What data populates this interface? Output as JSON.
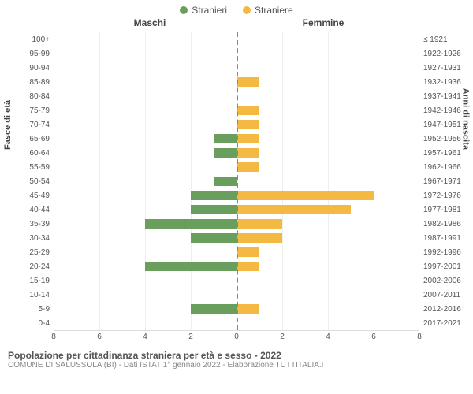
{
  "legend": {
    "male": {
      "label": "Stranieri",
      "color": "#6a9e5c"
    },
    "female": {
      "label": "Straniere",
      "color": "#f4b942"
    }
  },
  "headers": {
    "left": "Maschi",
    "right": "Femmine"
  },
  "axis_titles": {
    "left": "Fasce di età",
    "right": "Anni di nascita"
  },
  "chart": {
    "type": "population-pyramid",
    "xmax": 8,
    "xticks": [
      8,
      6,
      4,
      2,
      0,
      2,
      4,
      6,
      8
    ],
    "grid_color": "#eeeeee",
    "centerline_color": "#888888",
    "background_color": "#ffffff",
    "bar_height_pct": 70,
    "rows": [
      {
        "age": "100+",
        "birth": "≤ 1921",
        "m": 0,
        "f": 0
      },
      {
        "age": "95-99",
        "birth": "1922-1926",
        "m": 0,
        "f": 0
      },
      {
        "age": "90-94",
        "birth": "1927-1931",
        "m": 0,
        "f": 0
      },
      {
        "age": "85-89",
        "birth": "1932-1936",
        "m": 0,
        "f": 1
      },
      {
        "age": "80-84",
        "birth": "1937-1941",
        "m": 0,
        "f": 0
      },
      {
        "age": "75-79",
        "birth": "1942-1946",
        "m": 0,
        "f": 1
      },
      {
        "age": "70-74",
        "birth": "1947-1951",
        "m": 0,
        "f": 1
      },
      {
        "age": "65-69",
        "birth": "1952-1956",
        "m": 1,
        "f": 1
      },
      {
        "age": "60-64",
        "birth": "1957-1961",
        "m": 1,
        "f": 1
      },
      {
        "age": "55-59",
        "birth": "1962-1966",
        "m": 0,
        "f": 1
      },
      {
        "age": "50-54",
        "birth": "1967-1971",
        "m": 1,
        "f": 0
      },
      {
        "age": "45-49",
        "birth": "1972-1976",
        "m": 2,
        "f": 6
      },
      {
        "age": "40-44",
        "birth": "1977-1981",
        "m": 2,
        "f": 5
      },
      {
        "age": "35-39",
        "birth": "1982-1986",
        "m": 4,
        "f": 2
      },
      {
        "age": "30-34",
        "birth": "1987-1991",
        "m": 2,
        "f": 2
      },
      {
        "age": "25-29",
        "birth": "1992-1996",
        "m": 0,
        "f": 1
      },
      {
        "age": "20-24",
        "birth": "1997-2001",
        "m": 4,
        "f": 1
      },
      {
        "age": "15-19",
        "birth": "2002-2006",
        "m": 0,
        "f": 0
      },
      {
        "age": "10-14",
        "birth": "2007-2011",
        "m": 0,
        "f": 0
      },
      {
        "age": "5-9",
        "birth": "2012-2016",
        "m": 2,
        "f": 1
      },
      {
        "age": "0-4",
        "birth": "2017-2021",
        "m": 0,
        "f": 0
      }
    ]
  },
  "footer": {
    "title": "Popolazione per cittadinanza straniera per età e sesso - 2022",
    "subtitle": "COMUNE DI SALUSSOLA (BI) - Dati ISTAT 1° gennaio 2022 - Elaborazione TUTTITALIA.IT"
  }
}
